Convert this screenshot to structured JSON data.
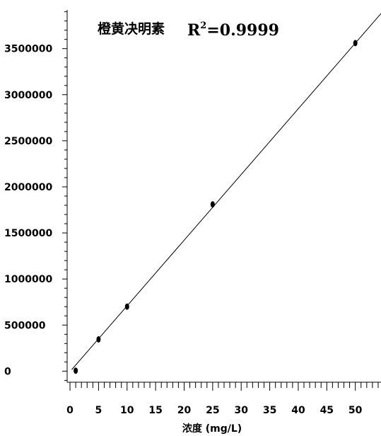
{
  "chart_data": {
    "type": "scatter",
    "title_compound": "橙黄决明素",
    "title_r2_prefix": "R",
    "title_r2_sup": "2",
    "title_r2_value": "=0.9999",
    "xlabel": "浓度 (mg/L)",
    "ylabel": "",
    "xlim": [
      -0.5,
      54.5
    ],
    "ylim": [
      -120000,
      3920000
    ],
    "x_ticks": [
      0,
      5,
      10,
      15,
      20,
      25,
      30,
      35,
      40,
      45,
      50
    ],
    "x_tick_labels": [
      "0",
      "5",
      "10",
      "15",
      "20",
      "25",
      "30",
      "35",
      "40",
      "45",
      "50"
    ],
    "y_ticks": [
      0,
      500000,
      1000000,
      1500000,
      2000000,
      2500000,
      3000000,
      3500000
    ],
    "y_tick_labels": [
      "0",
      "500000",
      "1000000",
      "1500000",
      "2000000",
      "2500000",
      "3000000",
      "3500000"
    ],
    "series": [
      {
        "x": [
          1,
          5,
          10,
          25,
          50
        ],
        "y": [
          5000,
          345000,
          700000,
          1810000,
          3560000
        ]
      }
    ],
    "fit_line": {
      "slope": 71300,
      "intercept": -5000
    },
    "grid": false,
    "colors": {
      "points": "#000000",
      "line": "#000000",
      "axis": "#000000"
    }
  }
}
